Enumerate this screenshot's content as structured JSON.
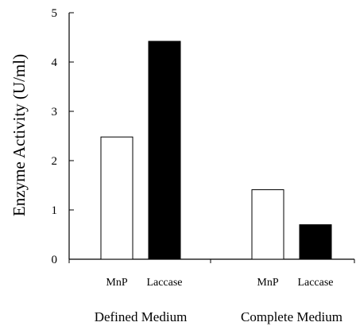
{
  "chart_data": {
    "type": "bar",
    "ylabel": "Enzyme Activity (U/ml)",
    "ylim": [
      0,
      5
    ],
    "yticks": [
      "0",
      "1",
      "2",
      "3",
      "4",
      "5"
    ],
    "groups": [
      {
        "name": "Defined Medium",
        "bars": [
          {
            "label": "MnP",
            "value": 2.48,
            "fill": "#ffffff"
          },
          {
            "label": "Laccase",
            "value": 4.42,
            "fill": "#000000"
          }
        ]
      },
      {
        "name": "Complete Medium",
        "bars": [
          {
            "label": "MnP",
            "value": 1.41,
            "fill": "#ffffff"
          },
          {
            "label": "Laccase",
            "value": 0.7,
            "fill": "#000000"
          }
        ]
      }
    ],
    "grid": false,
    "legend": "none"
  }
}
